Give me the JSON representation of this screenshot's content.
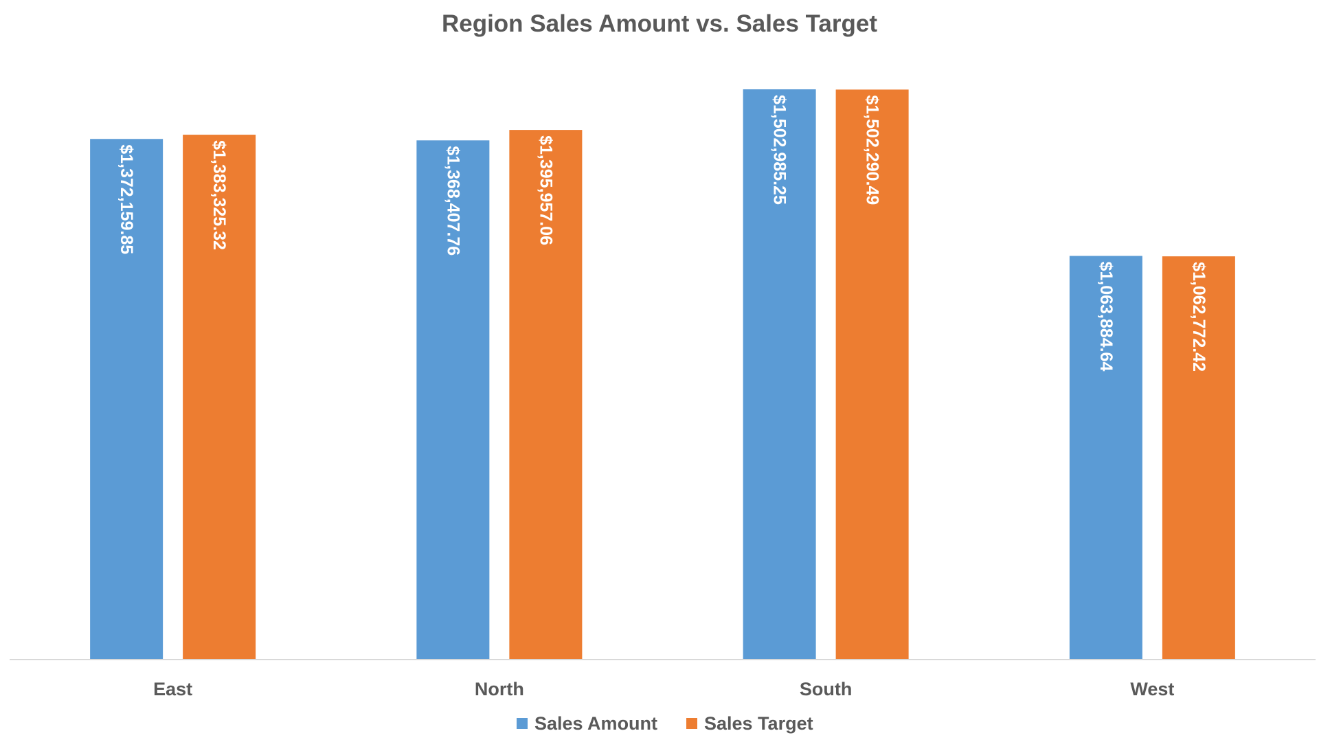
{
  "chart_data": {
    "type": "bar",
    "title": "Region Sales Amount vs. Sales Target",
    "xlabel": "",
    "ylabel": "",
    "categories": [
      "East",
      "North",
      "South",
      "West"
    ],
    "series": [
      {
        "name": "Sales Amount",
        "color": "#5B9BD5",
        "values": [
          1372159.85,
          1368407.76,
          1502985.25,
          1063884.64
        ],
        "labels": [
          "$1,372,159.85",
          "$1,368,407.76",
          "$1,502,985.25",
          "$1,063,884.64"
        ]
      },
      {
        "name": "Sales Target",
        "color": "#ED7D31",
        "values": [
          1383325.32,
          1395957.06,
          1502290.49,
          1062772.42
        ],
        "labels": [
          "$1,383,325.32",
          "$1,395,957.06",
          "$1,502,290.49",
          "$1,062,772.42"
        ]
      }
    ],
    "ylim": [
      0,
      1502985.25
    ],
    "grid": false,
    "legend_position": "bottom",
    "data_labels": "inside-end-rotated"
  }
}
